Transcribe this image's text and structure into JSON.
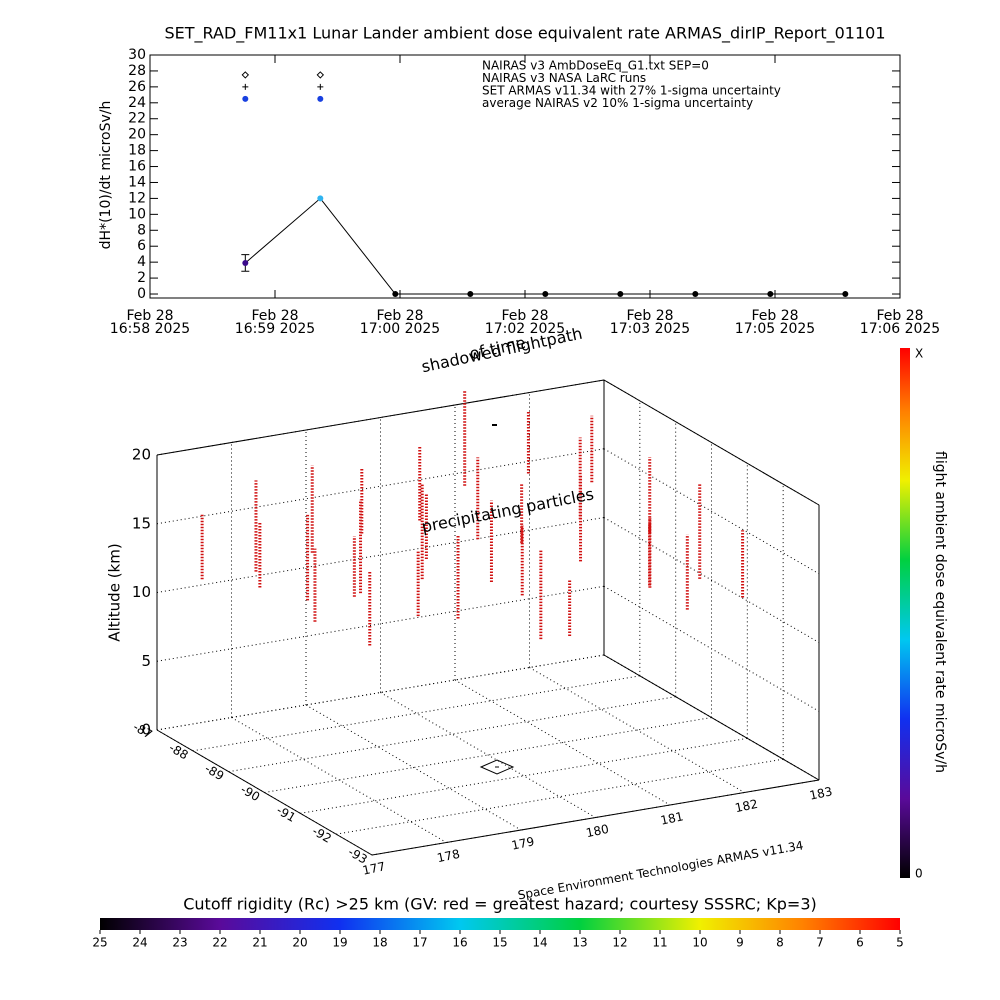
{
  "chart_data": [
    {
      "type": "line",
      "title": "SET_RAD_FM11x1  Lunar Lander ambient dose equivalent rate ARMAS_dirIP_Report_01101",
      "y_label": "dH*(10)/dt microSv/h",
      "x": [
        61,
        109,
        157,
        205,
        253,
        301,
        349,
        397,
        445
      ],
      "xlim": [
        0,
        480
      ],
      "xticks": [
        {
          "value": 0,
          "label": "Feb 28\n16:58 2025"
        },
        {
          "value": 80,
          "label": "Feb 28\n16:59 2025"
        },
        {
          "value": 160,
          "label": "Feb 28\n17:00 2025"
        },
        {
          "value": 240,
          "label": "Feb 28\n17:02 2025"
        },
        {
          "value": 320,
          "label": "Feb 28\n17:03 2025"
        },
        {
          "value": 400,
          "label": "Feb 28\n17:05 2025"
        },
        {
          "value": 480,
          "label": "Feb 28\n17:06 2025"
        }
      ],
      "ylim": [
        -0.5,
        30
      ],
      "yticks": [
        0,
        2,
        4,
        6,
        8,
        10,
        12,
        14,
        16,
        18,
        20,
        22,
        24,
        26,
        28,
        30
      ],
      "series": [
        {
          "name": "NAIRAS v3 AmbDoseEq_G1.txt SEP=0",
          "marker": "diamond",
          "color": "#000000",
          "values": [
            27.5,
            27.5,
            null,
            null,
            null,
            null,
            null,
            null,
            null
          ]
        },
        {
          "name": "NAIRAS v3 NASA LaRC runs",
          "marker": "plus",
          "color": "#000000",
          "values": [
            26,
            26,
            null,
            null,
            null,
            null,
            null,
            null,
            null
          ]
        },
        {
          "name": "SET ARMAS v11.34 with 27% 1-sigma uncertainty",
          "marker": "circle",
          "color": "#000000",
          "marker_colors": [
            "#3a0a8a",
            "#30b4f0",
            "#000000",
            "#000000",
            "#000000",
            "#000000",
            "#000000",
            "#000000",
            "#000000"
          ],
          "values": [
            3.9,
            12,
            0,
            0,
            0,
            0,
            0,
            0,
            0
          ],
          "errors": [
            1.05,
            null,
            null,
            null,
            null,
            null,
            null,
            null,
            null
          ]
        },
        {
          "name": "average NAIRAS v2 10% 1-sigma uncertainty",
          "marker": "dot",
          "color": "#1840e0",
          "values": [
            24.5,
            24.5,
            null,
            null,
            null,
            null,
            null,
            null,
            null
          ]
        }
      ]
    },
    {
      "type": "scatter3d",
      "annotations": [
        "shadowed flightpath",
        "of time",
        "precipitating particles"
      ],
      "z_label": "Altitude (km)",
      "zlim": [
        0,
        20
      ],
      "zticks": [
        0,
        5,
        10,
        15,
        20
      ],
      "xlim": [
        -87,
        -93
      ],
      "xticks": [
        -87,
        -88,
        -89,
        -90,
        -91,
        -92,
        -93
      ],
      "ylim": [
        177,
        183
      ],
      "yticks": [
        177,
        178,
        179,
        180,
        181,
        182,
        183
      ],
      "credit": "Space Environment Technologies ARMAS v11.34",
      "colorbar": {
        "label": "flight ambient dose equivalent rate microSv/h",
        "top_label": "X",
        "bottom_label": "0"
      },
      "rigidity_bar": {
        "label": "Cutoff rigidity (Rc) >25 km (GV: red = greatest hazard; courtesy SSSRC; Kp=3)",
        "lim": [
          25,
          5
        ],
        "ticks": [
          25,
          24,
          23,
          22,
          21,
          20,
          19,
          18,
          17,
          16,
          15,
          14,
          13,
          12,
          11,
          10,
          9,
          8,
          7,
          6,
          5
        ]
      }
    }
  ]
}
